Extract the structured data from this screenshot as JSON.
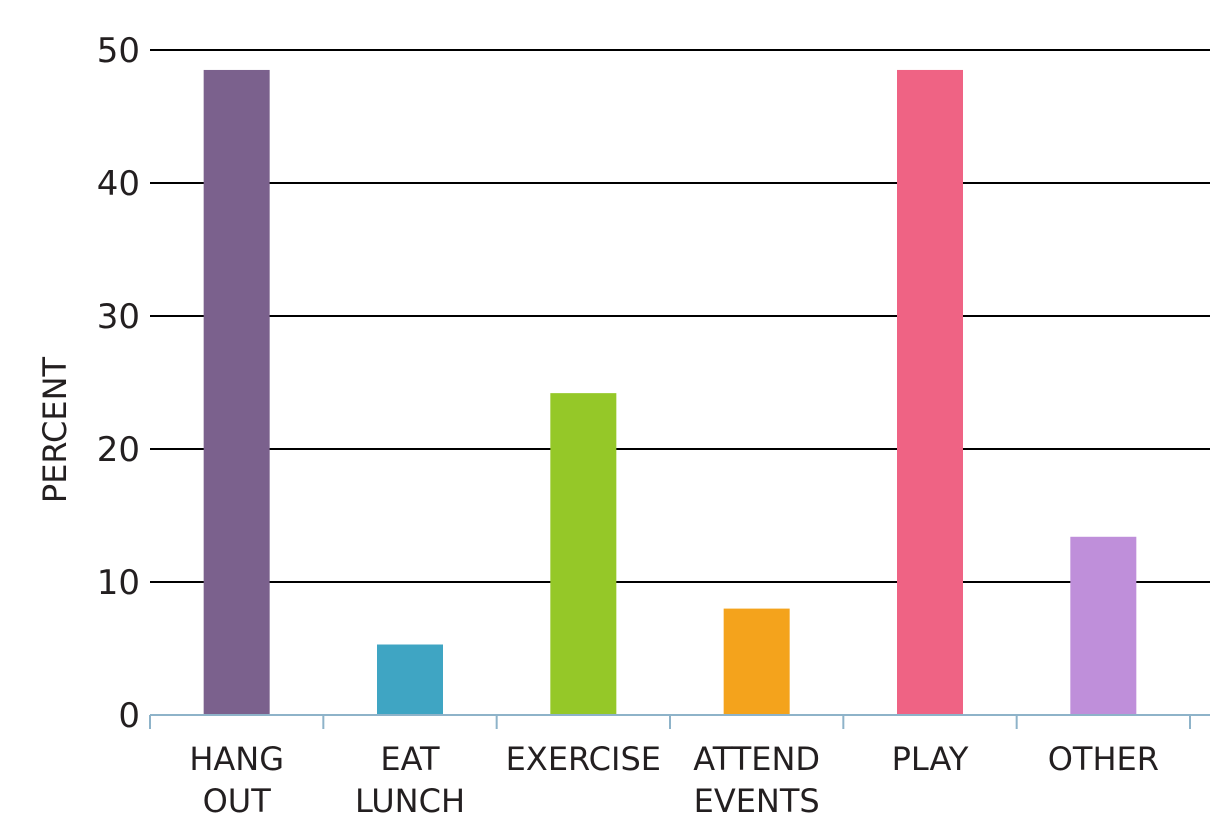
{
  "chart_data": {
    "type": "bar",
    "categories": [
      [
        "HANG",
        "OUT"
      ],
      [
        "EAT",
        "LUNCH"
      ],
      [
        "EXERCISE"
      ],
      [
        "ATTEND",
        "EVENTS"
      ],
      [
        "PLAY"
      ],
      [
        "OTHER"
      ]
    ],
    "values": [
      48.5,
      5.3,
      24.2,
      8,
      48.5,
      13.4
    ],
    "colors": [
      "#7b618d",
      "#3fa5c3",
      "#95c828",
      "#f4a31c",
      "#ef6384",
      "#bf8fda"
    ],
    "title": "",
    "xlabel": "",
    "ylabel": "PERCENT",
    "ylim": [
      0,
      50
    ],
    "yticks": [
      0,
      10,
      20,
      30,
      40,
      50
    ],
    "grid": true,
    "legend": "none"
  }
}
